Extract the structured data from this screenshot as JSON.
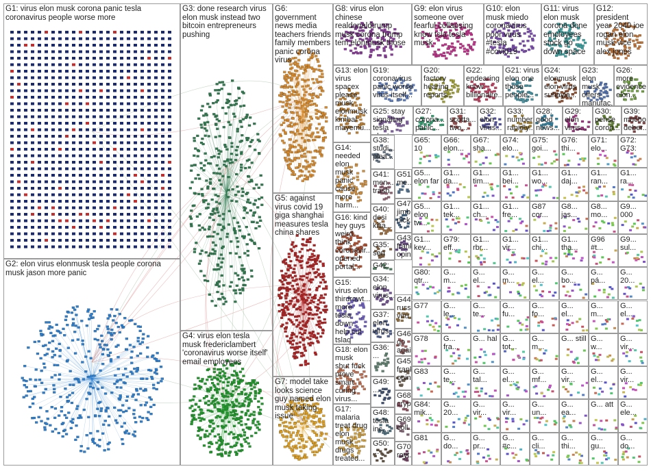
{
  "groups": [
    {
      "label": "G1: virus elon musk corona panic tesla coronavirus people worse more"
    },
    {
      "label": "G2: elon virus elonmusk tesla people corona musk jason more panic"
    },
    {
      "label": "G3: done research virus elon musk instead two bitcoin entrepreneurs pushing"
    },
    {
      "label": "G4: virus elon tesla musk fredericlambert 'coronavirus worse itself' email employees"
    },
    {
      "label": "G6: government news media teachers friends family members panic corona virus"
    },
    {
      "label": "G5: against virus covid 19 giga shanghai measures tesla china shares"
    },
    {
      "label": "G7: model take looks science guy named elon musk taking issue"
    },
    {
      "label": "G8: virus elon chinese realdonaldtrump musk corona trump tem elonmusk those"
    },
    {
      "label": "G9: elon virus someone over fearful collapsing know tsla tesla musk"
    },
    {
      "label": "G10: elon musk miedo coronavirus poor virus #tesla #covid19"
    },
    {
      "label": "G11: virus elon musk corona done employees stock go down space"
    },
    {
      "label": "G12: president year 2040 joe rogan elon musk vice alex jones"
    },
    {
      "label": "G13: elon virus spacex please musk elonmusk kimbal mayemu..."
    },
    {
      "label": "G19: coronavirus panic worse virus itself..."
    },
    {
      "label": "G20: factory hearing reports..."
    },
    {
      "label": "G22: endearing know billionaire..."
    },
    {
      "label": "G21: virus elon one those people..."
    },
    {
      "label": "G24: elonmusk elon virus suhayla..."
    },
    {
      "label": "G23: elon musk offers manufac..."
    },
    {
      "label": "G26: more evidence elon..."
    },
    {
      "label": "G25: stay signaling tesla plant..."
    },
    {
      "label": "G27: corona... panic..."
    },
    {
      "label": "G31: scotta... two..."
    },
    {
      "label": "G32: elon virus..."
    },
    {
      "label": "G33: number rapidly..."
    },
    {
      "label": "G28: good news..."
    },
    {
      "label": "G29: elon virus..."
    },
    {
      "label": "G30: pense coron..."
    },
    {
      "label": "G39: mucho deber..."
    },
    {
      "label": "G14: needed elon musk panic cause more harm..."
    },
    {
      "label": "G16: kind hey guys weird think coronavir... opened portal..."
    },
    {
      "label": "G15: virus elon thirdrowt... more tesla down help cut tslaq musk"
    },
    {
      "label": "G18: elon musk shut fuck prove smart curing virus..."
    },
    {
      "label": "G17: malaria treat drug elon musk drugs treated..."
    },
    {
      "label": "G38: studi... plea..."
    },
    {
      "label": "G41: men... trash"
    },
    {
      "label": "G51: me..."
    },
    {
      "label": "G40: desi kilia..."
    },
    {
      "label": "G47: jimb... nick..."
    },
    {
      "label": "G35: sen re..."
    },
    {
      "label": "G43: frank opin..."
    },
    {
      "label": "G42: ..."
    },
    {
      "label": "G34: elon virus..."
    },
    {
      "label": "G44: russ... viru..."
    },
    {
      "label": "G37: elon virus..."
    },
    {
      "label": "G46: go agai..."
    },
    {
      "label": "G36: ..."
    },
    {
      "label": "G45: frank opin..."
    },
    {
      "label": "G49: ..."
    },
    {
      "label": "G68: cryp..."
    },
    {
      "label": "G48: tesla inc..."
    },
    {
      "label": "G69: coll..."
    },
    {
      "label": "G50: ..."
    },
    {
      "label": "G70: royt..."
    }
  ],
  "small_groups": [
    "G65: 10",
    "G66: elon...",
    "G67: sha...",
    "G74: elo...",
    "G75: goi...",
    "G76: thi...",
    "G71: elo...",
    "G72: G73:",
    "G5... elon far",
    "G1... da...",
    "G1... tim...",
    "G1... bei...",
    "G1... wo...",
    "G1... daj...",
    "G1... ran...",
    "G1... ra...",
    "G5... elon tw...",
    "G1... tek...",
    "G1... ch...",
    "G1... fre...",
    "G87 cor...",
    "G8... jas...",
    "G8... mo...",
    "G9... 000",
    "G1... kev...",
    "G79: eff...",
    "G1... rbr...",
    "G1... vir...",
    "G1... chi...",
    "G1... tha...",
    "G96 #t...",
    "G9... sul...",
    "G80: qtr...",
    "G... m...",
    "G... el...",
    "G... m...",
    "G... el...",
    "G... bo...",
    "G... pá...",
    "G... 20...",
    "G77",
    "G... le...",
    "G... te...",
    "G... fu...",
    "G... fo...",
    "G... el...",
    "G... m...",
    "G... el...",
    "G78",
    "G... fra...",
    "G... hal",
    "G... tot...",
    "G... m...",
    "G... still",
    "G... w...",
    "G... vir...",
    "G83",
    "G... te...",
    "G... tal...",
    "G... el...",
    "G... mf...",
    "G... vir...",
    "G... el...",
    "G... vir...",
    "G84: mik...",
    "G... 20...",
    "G... vir...",
    "G... vir...",
    "G... un...",
    "G... ea...",
    "G... att",
    "G... ele...",
    "G81",
    "G... do...",
    "G... pr...",
    "G... #c...",
    "G... cli...",
    "G... thi...",
    "G... gu...",
    "G... do..."
  ]
}
